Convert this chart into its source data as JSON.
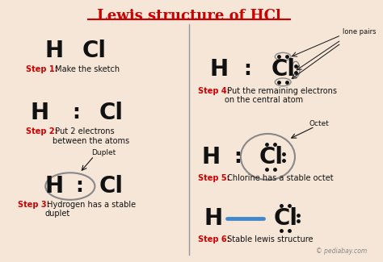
{
  "title": "Lewis structure of HCl",
  "bg_color": "#f5e6d8",
  "title_color": "#cc0000",
  "title_fontsize": 13,
  "divider_color": "#999999",
  "atom_color": "#111111",
  "step_red": "#cc0000",
  "step_black": "#111111",
  "dot_color": "#111111",
  "circle_color": "#888888",
  "bond_color": "#4488cc",
  "watermark": "© pediabay.com",
  "steps": [
    {
      "id": 1,
      "label_bold": "Step 1:",
      "label_rest": " Make the sketch",
      "atoms": "H   Cl",
      "dots_between": false,
      "dots_on_cl": false,
      "circle": false,
      "bond": false
    },
    {
      "id": 2,
      "label_bold": "Step 2:",
      "label_rest": " Put 2 electrons\nbetween the atoms",
      "atoms_h": "H",
      "atoms_cl": "Cl",
      "dots_between": true,
      "dots_on_cl": false,
      "circle": false,
      "bond": false
    },
    {
      "id": 3,
      "label_bold": "Step 3:",
      "label_rest": " Hydrogen has a stable\nduplet",
      "atoms_h": "H",
      "atoms_cl": "Cl",
      "dots_between": true,
      "dots_on_cl": false,
      "circle": "duplet",
      "circle_label": "Duplet",
      "bond": false
    },
    {
      "id": 4,
      "label_bold": "Step 4:",
      "label_rest": " Put the remaining electrons\non the central atom",
      "atoms_h": "H",
      "atoms_cl": "Cl",
      "dots_between": true,
      "dots_on_cl": true,
      "circle": false,
      "bond": false,
      "lone_pairs_label": "lone pairs"
    },
    {
      "id": 5,
      "label_bold": "Step 5:",
      "label_rest": " Chlorine has a stable octet",
      "atoms_h": "H",
      "atoms_cl": "Cl",
      "dots_between": true,
      "dots_on_cl": true,
      "circle": "octet",
      "circle_label": "Octet",
      "bond": false
    },
    {
      "id": 6,
      "label_bold": "Step 6:",
      "label_rest": " Stable lewis structure",
      "atoms_h": "H",
      "atoms_cl": "Cl",
      "dots_between": false,
      "dots_on_cl": true,
      "circle": false,
      "bond": true
    }
  ]
}
